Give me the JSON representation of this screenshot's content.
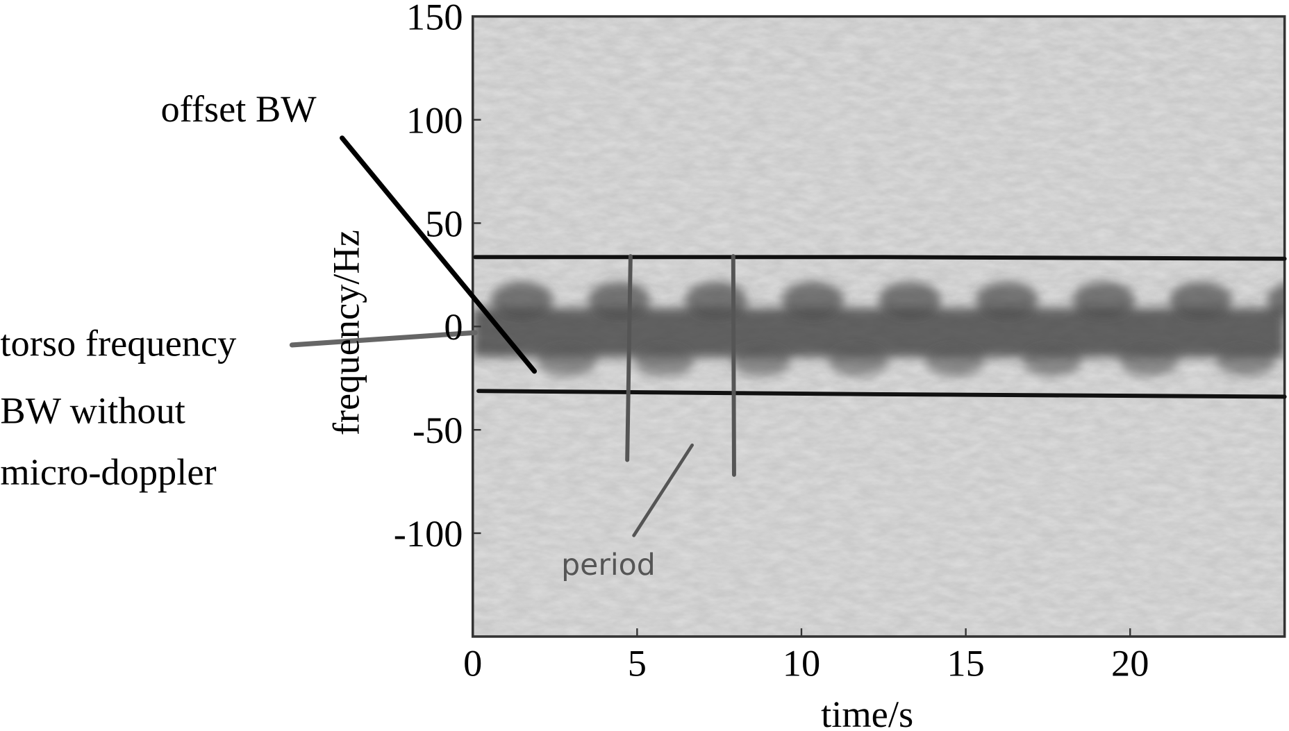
{
  "chart_data": {
    "type": "spectrogram",
    "x_label": "time/s",
    "y_label": "frequency/Hz",
    "xlim": [
      0,
      24.7
    ],
    "ylim": [
      -150,
      150
    ],
    "xticks": [
      0,
      5,
      10,
      15,
      20
    ],
    "yticks": [
      150,
      100,
      50,
      0,
      -50,
      -100
    ],
    "annotations": [
      "offset BW",
      "torso frequency",
      "BW without",
      "micro-doppler",
      "period"
    ]
  }
}
